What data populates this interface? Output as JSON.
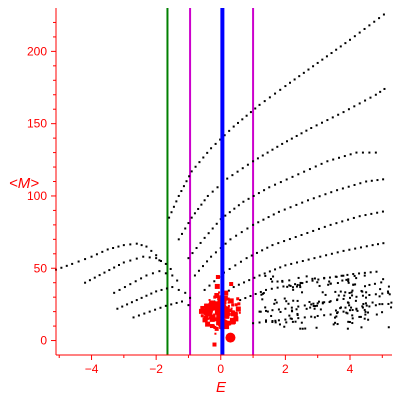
{
  "chart_data": {
    "type": "scatter",
    "title": "",
    "xlabel": "E",
    "ylabel": "<M>",
    "xlim": [
      -5.1,
      5.3
    ],
    "ylim": [
      -10,
      230
    ],
    "xticks": [
      -4,
      -2,
      0,
      2,
      4
    ],
    "yticks": [
      0,
      50,
      100,
      150,
      200
    ],
    "grid": false,
    "colors": {
      "axis": "#ff0000",
      "branch_points": "#000000",
      "cluster_points": "#ff0000",
      "line_green": "#008000",
      "line_magenta": "#cc00cc",
      "line_blue": "#0000ff"
    },
    "vertical_lines": [
      {
        "x": -1.65,
        "color": "#008000"
      },
      {
        "x": -0.95,
        "color": "#cc00cc"
      },
      {
        "x": 0.05,
        "color": "#0000ff"
      },
      {
        "x": 1.0,
        "color": "#cc00cc"
      }
    ],
    "branches": [
      [
        [
          -5.1,
          49
        ],
        [
          -4.6,
          53
        ],
        [
          -4.0,
          58
        ],
        [
          -3.5,
          63
        ],
        [
          -3.0,
          66
        ],
        [
          -2.6,
          67
        ],
        [
          -2.3,
          65
        ],
        [
          -2.0,
          59
        ],
        [
          -1.8,
          52
        ]
      ],
      [
        [
          -4.2,
          40
        ],
        [
          -3.6,
          47
        ],
        [
          -3.0,
          54
        ],
        [
          -2.4,
          58
        ],
        [
          -2.0,
          57
        ],
        [
          -1.7,
          53
        ],
        [
          -1.4,
          46
        ]
      ],
      [
        [
          -3.3,
          33
        ],
        [
          -2.8,
          39
        ],
        [
          -2.3,
          45
        ],
        [
          -1.9,
          48
        ],
        [
          -1.5,
          45
        ],
        [
          -1.2,
          38
        ]
      ],
      [
        [
          -3.2,
          22
        ],
        [
          -2.6,
          28
        ],
        [
          -2.0,
          34
        ],
        [
          -1.5,
          37
        ],
        [
          -1.1,
          33
        ],
        [
          -0.8,
          26
        ]
      ],
      [
        [
          -2.7,
          16
        ],
        [
          -2.2,
          20
        ],
        [
          -1.7,
          24
        ],
        [
          -1.2,
          27
        ],
        [
          -0.8,
          22
        ]
      ],
      [
        [
          -1.6,
          85
        ],
        [
          -1.3,
          100
        ],
        [
          -0.9,
          117
        ],
        [
          -0.3,
          133
        ],
        [
          0.4,
          148
        ],
        [
          1.2,
          163
        ],
        [
          2.0,
          176
        ],
        [
          3.0,
          192
        ],
        [
          4.0,
          208
        ],
        [
          5.2,
          228
        ]
      ],
      [
        [
          -1.3,
          70
        ],
        [
          -0.9,
          85
        ],
        [
          -0.4,
          100
        ],
        [
          0.2,
          112
        ],
        [
          1.0,
          124
        ],
        [
          1.9,
          136
        ],
        [
          2.8,
          147
        ],
        [
          3.8,
          158
        ],
        [
          4.8,
          170
        ],
        [
          5.2,
          176
        ]
      ],
      [
        [
          -1.0,
          57
        ],
        [
          -0.5,
          71
        ],
        [
          0.0,
          84
        ],
        [
          0.7,
          96
        ],
        [
          1.5,
          106
        ],
        [
          2.4,
          115
        ],
        [
          3.3,
          124
        ],
        [
          4.2,
          130
        ],
        [
          5.0,
          130
        ]
      ],
      [
        [
          -0.8,
          45
        ],
        [
          -0.3,
          58
        ],
        [
          0.3,
          70
        ],
        [
          1.0,
          80
        ],
        [
          1.8,
          89
        ],
        [
          2.7,
          97
        ],
        [
          3.6,
          104
        ],
        [
          4.5,
          110
        ],
        [
          5.2,
          112
        ]
      ],
      [
        [
          -0.5,
          35
        ],
        [
          0.1,
          47
        ],
        [
          0.8,
          57
        ],
        [
          1.6,
          66
        ],
        [
          2.5,
          73
        ],
        [
          3.4,
          80
        ],
        [
          4.3,
          86
        ],
        [
          5.2,
          90
        ]
      ],
      [
        [
          -0.2,
          27
        ],
        [
          0.4,
          37
        ],
        [
          1.2,
          45
        ],
        [
          2.0,
          52
        ],
        [
          2.9,
          57
        ],
        [
          3.8,
          62
        ],
        [
          4.7,
          66
        ],
        [
          5.2,
          68
        ]
      ],
      [
        [
          0.6,
          28
        ],
        [
          1.4,
          35
        ],
        [
          2.3,
          39
        ],
        [
          3.2,
          43
        ],
        [
          4.1,
          46
        ],
        [
          5.0,
          48
        ]
      ],
      [
        [
          1.2,
          20
        ],
        [
          2.0,
          22
        ],
        [
          2.8,
          25
        ],
        [
          3.6,
          28
        ],
        [
          4.4,
          31
        ],
        [
          5.2,
          33
        ]
      ],
      [
        [
          1.0,
          12
        ],
        [
          1.8,
          14
        ],
        [
          2.6,
          16
        ],
        [
          3.4,
          18
        ],
        [
          4.2,
          22
        ],
        [
          5.2,
          26
        ]
      ]
    ],
    "cloud": {
      "x_range": [
        1.2,
        5.3
      ],
      "y_range": [
        8,
        45
      ],
      "count": 170
    },
    "cluster": {
      "center": [
        0.0,
        20
      ],
      "spread": [
        0.6,
        12
      ],
      "count": 130
    },
    "cluster_large": [
      [
        -0.25,
        24
      ],
      [
        0.05,
        22
      ],
      [
        0.3,
        2
      ],
      [
        -0.4,
        20
      ],
      [
        0.05,
        12
      ]
    ]
  }
}
